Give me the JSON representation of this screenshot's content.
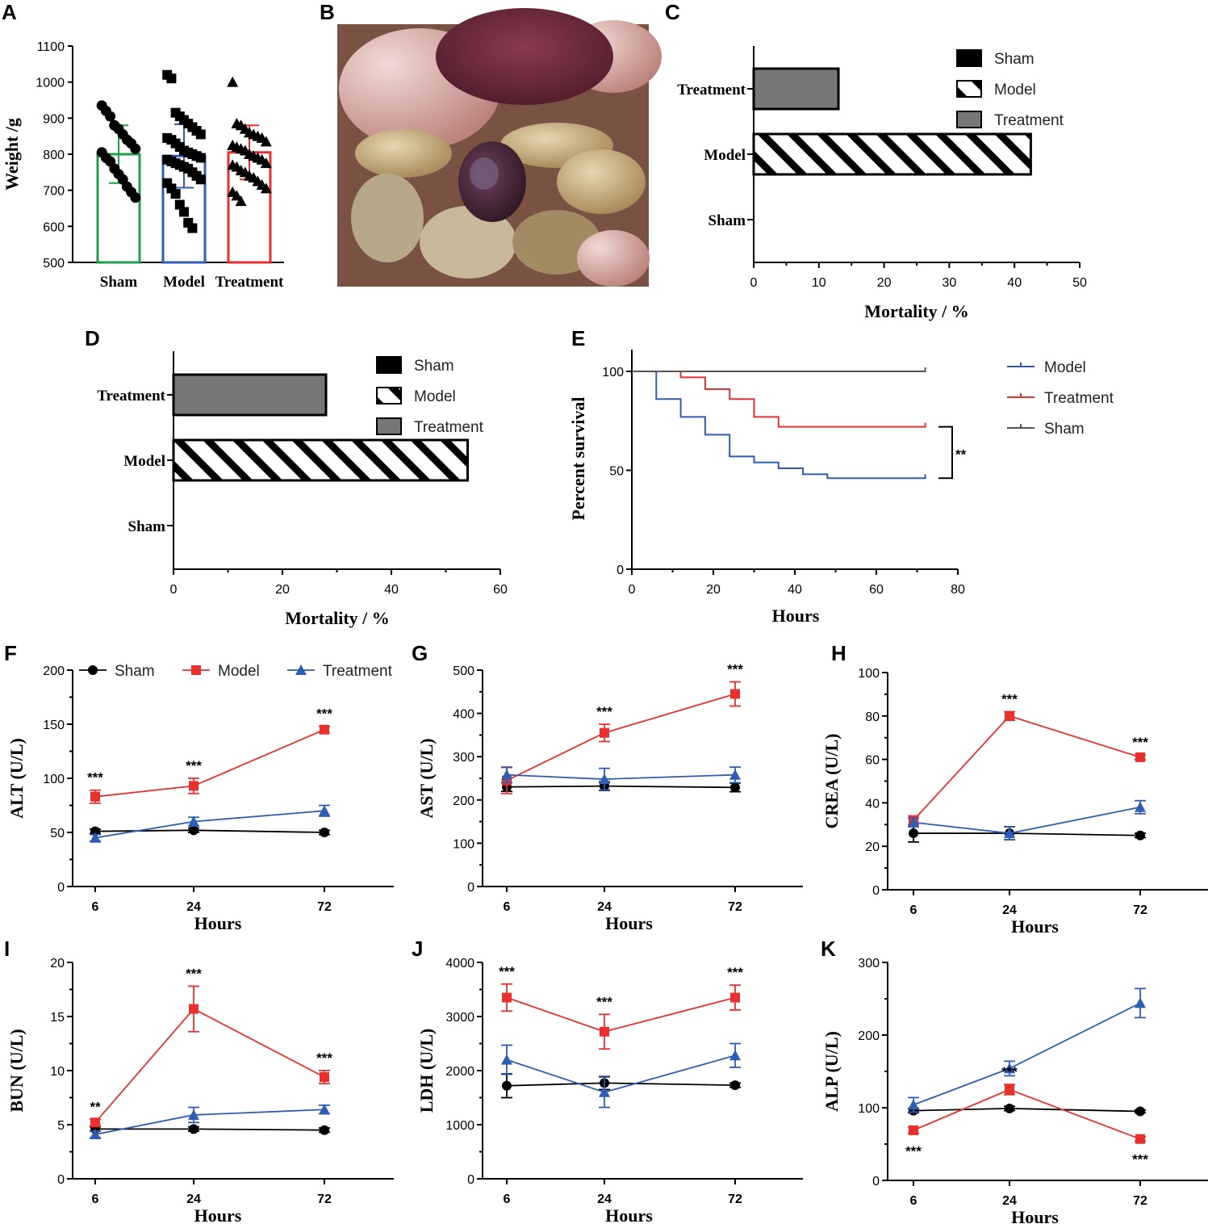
{
  "panels": {
    "A": {
      "letter": "A"
    },
    "B": {
      "letter": "B"
    },
    "C": {
      "letter": "C"
    },
    "D": {
      "letter": "D"
    },
    "E": {
      "letter": "E"
    },
    "F": {
      "letter": "F"
    },
    "G": {
      "letter": "G"
    },
    "H": {
      "letter": "H"
    },
    "I": {
      "letter": "I"
    },
    "J": {
      "letter": "J"
    },
    "K": {
      "letter": "K"
    }
  },
  "photo": {
    "alt": "Intraoperative photograph of intestinal loops"
  },
  "colors": {
    "sham": "#000000",
    "model": "#e8302f",
    "treatment": "#2e5db3",
    "sham_bar_A": "#1e9e4a",
    "model_bar_A": "#2e5db3",
    "treatment_bar_A": "#e8302f",
    "gray": "#777777"
  },
  "chart_data": [
    {
      "id": "A",
      "type": "bar",
      "categories": [
        "Sham",
        "Model",
        "Treatment"
      ],
      "values": [
        800,
        795,
        805
      ],
      "sd": [
        80,
        88,
        75
      ],
      "ylabel": "Weight /g",
      "ylim": [
        500,
        1100
      ],
      "yticks": [
        500,
        600,
        700,
        800,
        900,
        1000,
        1100
      ],
      "points": [
        [
          935,
          920,
          905,
          880,
          870,
          855,
          840,
          830,
          815,
          805,
          790,
          780,
          760,
          745,
          730,
          710,
          695,
          680
        ],
        [
          1020,
          1010,
          915,
          905,
          895,
          885,
          875,
          865,
          855,
          845,
          840,
          830,
          820,
          810,
          805,
          800,
          795,
          790,
          785,
          780,
          775,
          770,
          765,
          760,
          750,
          740,
          730,
          720,
          705,
          690,
          660,
          640,
          610,
          595
        ],
        [
          1000,
          885,
          880,
          870,
          860,
          855,
          850,
          845,
          835,
          825,
          820,
          815,
          810,
          800,
          795,
          790,
          785,
          775,
          770,
          765,
          755,
          750,
          740,
          735,
          725,
          715,
          705,
          695,
          685,
          670
        ]
      ]
    },
    {
      "id": "C",
      "type": "bar",
      "orientation": "horizontal",
      "categories": [
        "Sham",
        "Model",
        "Treatment"
      ],
      "values": [
        0,
        42.5,
        13
      ],
      "xlabel": "Mortality / %",
      "xlim": [
        0,
        50
      ],
      "xticks": [
        0,
        10,
        20,
        30,
        40,
        50
      ],
      "legend": [
        "Sham",
        "Model",
        "Treatment"
      ],
      "legend_position": "top-right"
    },
    {
      "id": "D",
      "type": "bar",
      "orientation": "horizontal",
      "categories": [
        "Sham",
        "Model",
        "Treatment"
      ],
      "values": [
        0,
        54,
        28
      ],
      "xlabel": "Mortality / %",
      "xlim": [
        0,
        60
      ],
      "xticks": [
        0,
        20,
        40,
        60
      ],
      "legend": [
        "Sham",
        "Model",
        "Treatment"
      ],
      "legend_position": "top-right"
    },
    {
      "id": "E",
      "type": "line",
      "subtype": "survival",
      "xlabel": "Hours",
      "ylabel": "Percent survival",
      "xlim": [
        0,
        80
      ],
      "ylim": [
        0,
        100
      ],
      "xticks": [
        0,
        20,
        40,
        60,
        80
      ],
      "yticks": [
        0,
        50,
        100
      ],
      "series": [
        {
          "name": "Model",
          "steps": [
            [
              0,
              100
            ],
            [
              6,
              86
            ],
            [
              12,
              77
            ],
            [
              18,
              68
            ],
            [
              24,
              57
            ],
            [
              30,
              54
            ],
            [
              36,
              51
            ],
            [
              42,
              48
            ],
            [
              48,
              46
            ],
            [
              72,
              46
            ]
          ]
        },
        {
          "name": "Treatment",
          "steps": [
            [
              0,
              100
            ],
            [
              12,
              97
            ],
            [
              18,
              91
            ],
            [
              24,
              86
            ],
            [
              30,
              77
            ],
            [
              36,
              72
            ],
            [
              72,
              72
            ]
          ]
        },
        {
          "name": "Sham",
          "steps": [
            [
              0,
              100
            ],
            [
              72,
              100
            ]
          ]
        }
      ],
      "annotation": "**"
    },
    {
      "id": "F",
      "type": "line",
      "categories": [
        "6",
        "24",
        "72"
      ],
      "xlabel": "Hours",
      "ylabel": "ALT (U/L)",
      "ylim": [
        0,
        200
      ],
      "yticks": [
        0,
        50,
        100,
        150,
        200
      ],
      "series": [
        {
          "name": "Sham",
          "values": [
            51,
            52,
            50
          ],
          "err": [
            2,
            2,
            2
          ]
        },
        {
          "name": "Model",
          "values": [
            83,
            93,
            145
          ],
          "err": [
            6,
            7,
            3
          ]
        },
        {
          "name": "Treatment",
          "values": [
            45,
            60,
            70
          ],
          "err": [
            3,
            4,
            5
          ]
        }
      ],
      "stars": [
        "***",
        "***",
        "***"
      ],
      "legend": [
        "Sham",
        "Model",
        "Treatment"
      ]
    },
    {
      "id": "G",
      "type": "line",
      "categories": [
        "6",
        "24",
        "72"
      ],
      "xlabel": "Hours",
      "ylabel": "AST (U/L)",
      "ylim": [
        0,
        500
      ],
      "yticks": [
        0,
        100,
        200,
        300,
        400,
        500
      ],
      "series": [
        {
          "name": "Sham",
          "values": [
            230,
            232,
            229
          ],
          "err": [
            10,
            10,
            10
          ]
        },
        {
          "name": "Model",
          "values": [
            245,
            355,
            445
          ],
          "err": [
            30,
            20,
            28
          ]
        },
        {
          "name": "Treatment",
          "values": [
            258,
            248,
            258
          ],
          "err": [
            18,
            25,
            18
          ]
        }
      ],
      "stars": [
        "",
        "***",
        "***"
      ]
    },
    {
      "id": "H",
      "type": "line",
      "categories": [
        "6",
        "24",
        "72"
      ],
      "xlabel": "Hours",
      "ylabel": "CREA (U/L)",
      "ylim": [
        0,
        100
      ],
      "yticks": [
        0,
        20,
        40,
        60,
        80,
        100
      ],
      "series": [
        {
          "name": "Sham",
          "values": [
            26,
            26,
            25
          ],
          "err": [
            4,
            3,
            1
          ]
        },
        {
          "name": "Model",
          "values": [
            32,
            80,
            61
          ],
          "err": [
            2,
            2,
            1
          ]
        },
        {
          "name": "Treatment",
          "values": [
            31,
            26,
            38
          ],
          "err": [
            2,
            3,
            3
          ]
        }
      ],
      "stars": [
        "",
        "***",
        "***"
      ]
    },
    {
      "id": "I",
      "type": "line",
      "categories": [
        "6",
        "24",
        "72"
      ],
      "xlabel": "Hours",
      "ylabel": "BUN (U/L)",
      "ylim": [
        0,
        20
      ],
      "yticks": [
        0,
        5,
        10,
        15,
        20
      ],
      "series": [
        {
          "name": "Sham",
          "values": [
            4.6,
            4.6,
            4.5
          ],
          "err": [
            0.2,
            0.2,
            0.2
          ]
        },
        {
          "name": "Model",
          "values": [
            5.2,
            15.7,
            9.4
          ],
          "err": [
            0.3,
            2.1,
            0.6
          ]
        },
        {
          "name": "Treatment",
          "values": [
            4.1,
            5.9,
            6.4
          ],
          "err": [
            0.3,
            0.7,
            0.4
          ]
        }
      ],
      "stars": [
        "**",
        "***",
        "***"
      ]
    },
    {
      "id": "J",
      "type": "line",
      "categories": [
        "6",
        "24",
        "72"
      ],
      "xlabel": "Hours",
      "ylabel": "LDH (U/L)",
      "ylim": [
        0,
        4000
      ],
      "yticks": [
        0,
        1000,
        2000,
        3000,
        4000
      ],
      "series": [
        {
          "name": "Sham",
          "values": [
            1720,
            1770,
            1730
          ],
          "err": [
            220,
            120,
            40
          ]
        },
        {
          "name": "Model",
          "values": [
            3350,
            2720,
            3350
          ],
          "err": [
            250,
            320,
            230
          ]
        },
        {
          "name": "Treatment",
          "values": [
            2200,
            1600,
            2280
          ],
          "err": [
            270,
            280,
            220
          ]
        }
      ],
      "stars": [
        "***",
        "***",
        "***"
      ]
    },
    {
      "id": "K",
      "type": "line",
      "categories": [
        "6",
        "24",
        "72"
      ],
      "xlabel": "Hours",
      "ylabel": "ALP (U/L)",
      "ylim": [
        0,
        300
      ],
      "yticks": [
        0,
        100,
        200,
        300
      ],
      "series": [
        {
          "name": "Sham",
          "values": [
            96,
            99,
            95
          ],
          "err": [
            3,
            3,
            2
          ]
        },
        {
          "name": "Model",
          "values": [
            69,
            125,
            57
          ],
          "err": [
            4,
            7,
            3
          ]
        },
        {
          "name": "Treatment",
          "values": [
            104,
            154,
            244
          ],
          "err": [
            10,
            10,
            20
          ]
        }
      ],
      "stars": [
        "***",
        "***",
        "***"
      ],
      "stars_below": [
        true,
        false,
        true
      ]
    }
  ]
}
